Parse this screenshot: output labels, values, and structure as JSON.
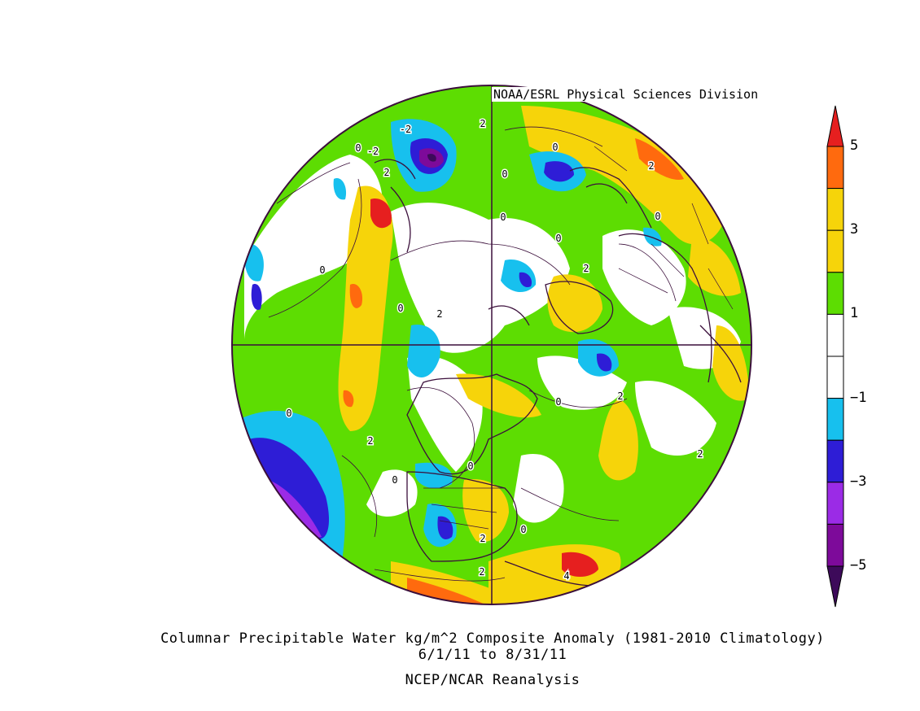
{
  "credit": "NOAA/ESRL Physical Sciences Division",
  "title_line1": "Columnar Precipitable Water kg/m^2 Composite Anomaly (1981-2010 Climatology)",
  "title_line2": "6/1/11  to 8/31/11",
  "title_line3": "NCEP/NCAR Reanalysis",
  "colorbar": {
    "bins": [
      {
        "color": "#3d0a5a"
      },
      {
        "color": "#7d0a9a"
      },
      {
        "color": "#9b2be6"
      },
      {
        "color": "#2e1dd6"
      },
      {
        "color": "#17c0ee"
      },
      {
        "color": "#ffffff"
      },
      {
        "color": "#ffffff"
      },
      {
        "color": "#5ddd02"
      },
      {
        "color": "#f6d40a"
      },
      {
        "color": "#f6d40a"
      },
      {
        "color": "#ff6a0e"
      },
      {
        "color": "#e61f1f"
      }
    ],
    "labels": [
      "5",
      "3",
      "1",
      "−1",
      "−3",
      "−5"
    ]
  },
  "contour_labels": [
    "-2",
    "0",
    "2",
    "-2",
    "0",
    "0",
    "2",
    "2",
    "0",
    "0",
    "0",
    "2",
    "0",
    "0",
    "2",
    "0",
    "0",
    "2",
    "2",
    "0",
    "0",
    "0",
    "2",
    "2",
    "4",
    "2"
  ]
}
